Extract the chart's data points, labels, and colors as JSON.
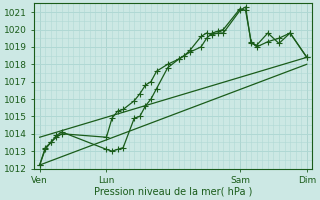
{
  "xlabel": "Pression niveau de la mer( hPa )",
  "ylim": [
    1012,
    1021.5
  ],
  "xlim": [
    0,
    100
  ],
  "yticks": [
    1012,
    1013,
    1014,
    1015,
    1016,
    1017,
    1018,
    1019,
    1020,
    1021
  ],
  "xtick_positions": [
    2,
    26,
    74,
    98
  ],
  "xtick_labels": [
    "Ven",
    "Lun",
    "Sam",
    "Dim"
  ],
  "vline_positions": [
    2,
    26,
    74,
    98
  ],
  "bg_color": "#cce8e4",
  "grid_color": "#b0d8d4",
  "line_color": "#1a5c1a",
  "series1_x": [
    2,
    4,
    6,
    8,
    10,
    26,
    28,
    30,
    32,
    36,
    38,
    40,
    42,
    44,
    48,
    52,
    54,
    56,
    60,
    62,
    64,
    66,
    68,
    74,
    76,
    78,
    80,
    84,
    88,
    92,
    98
  ],
  "series1_y": [
    1012.2,
    1013.1,
    1013.5,
    1013.9,
    1014.1,
    1013.1,
    1013.0,
    1013.1,
    1013.2,
    1014.9,
    1015.0,
    1015.6,
    1016.0,
    1016.6,
    1017.8,
    1018.3,
    1018.5,
    1018.8,
    1019.6,
    1019.8,
    1019.7,
    1019.8,
    1019.8,
    1021.1,
    1021.3,
    1019.2,
    1019.1,
    1019.8,
    1019.2,
    1019.8,
    1018.4
  ],
  "series2_x": [
    2,
    4,
    6,
    8,
    10,
    26,
    28,
    30,
    32,
    36,
    38,
    40,
    42,
    44,
    48,
    52,
    54,
    56,
    60,
    62,
    64,
    66,
    68,
    74,
    76,
    78,
    80,
    84,
    88,
    92,
    98
  ],
  "series2_y": [
    1012.2,
    1013.2,
    1013.5,
    1013.8,
    1014.0,
    1013.8,
    1014.9,
    1015.3,
    1015.4,
    1015.9,
    1016.3,
    1016.8,
    1017.0,
    1017.6,
    1018.0,
    1018.3,
    1018.5,
    1018.7,
    1019.0,
    1019.5,
    1019.8,
    1019.9,
    1020.0,
    1021.2,
    1021.1,
    1019.3,
    1019.0,
    1019.3,
    1019.5,
    1019.8,
    1018.4
  ],
  "trend1_x": [
    2,
    98
  ],
  "trend1_y": [
    1013.8,
    1018.4
  ],
  "trend2_x": [
    2,
    98
  ],
  "trend2_y": [
    1012.2,
    1018.0
  ],
  "marker_size": 2.5,
  "lw": 0.9
}
